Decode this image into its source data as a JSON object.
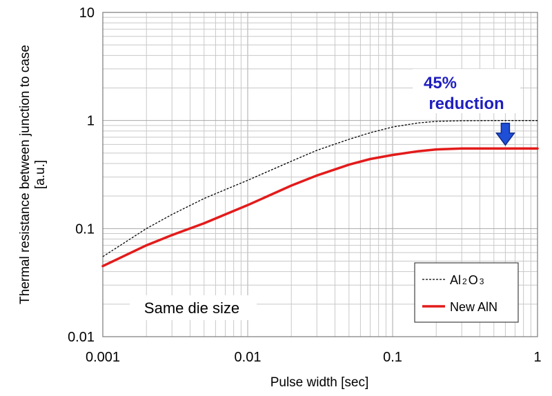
{
  "chart_data": {
    "type": "line",
    "title": "",
    "xlabel": "Pulse width [sec]",
    "ylabel_line1": "Thermal resistance between junction to case",
    "ylabel_line2": "[a.u.]",
    "xscale": "log",
    "yscale": "log",
    "xlim": [
      0.001,
      1
    ],
    "ylim": [
      0.01,
      10
    ],
    "x_ticks": [
      "0.001",
      "0.01",
      "0.1",
      "1"
    ],
    "y_ticks": [
      "0.01",
      "0.1",
      "1",
      "10"
    ],
    "grid": true,
    "legend_position": "bottom-right",
    "series": [
      {
        "name": "Al2O3",
        "legend_parts": [
          "Al",
          "2",
          "O",
          "3"
        ],
        "style": "dashed",
        "color": "#000000",
        "x": [
          0.001,
          0.002,
          0.003,
          0.005,
          0.01,
          0.02,
          0.03,
          0.05,
          0.07,
          0.1,
          0.15,
          0.2,
          0.3,
          0.5,
          1
        ],
        "y": [
          0.055,
          0.1,
          0.135,
          0.19,
          0.28,
          0.42,
          0.53,
          0.67,
          0.77,
          0.87,
          0.95,
          0.98,
          0.995,
          1.0,
          1.0
        ]
      },
      {
        "name": "New AlN",
        "legend_label": "New AlN",
        "style": "solid",
        "color": "#e31b1b",
        "x": [
          0.001,
          0.002,
          0.003,
          0.005,
          0.01,
          0.02,
          0.03,
          0.05,
          0.07,
          0.1,
          0.15,
          0.2,
          0.3,
          0.5,
          1
        ],
        "y": [
          0.045,
          0.07,
          0.087,
          0.112,
          0.165,
          0.25,
          0.31,
          0.39,
          0.44,
          0.48,
          0.52,
          0.54,
          0.55,
          0.55,
          0.55
        ]
      }
    ],
    "annotations": {
      "reduction_line1": "45%",
      "reduction_line2": "reduction",
      "reduction_at_x": 0.6,
      "reduction_from_y": 1.0,
      "reduction_to_y": 0.55,
      "note": "Same die size"
    },
    "colors": {
      "annotation": "#1f1fbf",
      "arrow_fill": "#1f4fd6",
      "grid": "#c8c8c8"
    }
  }
}
